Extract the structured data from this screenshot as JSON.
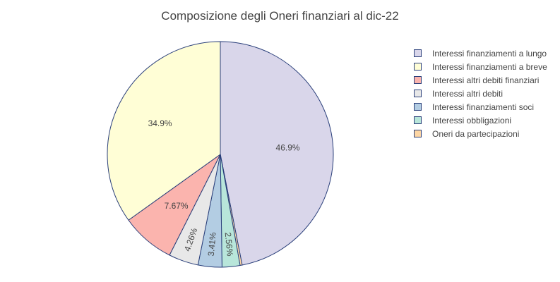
{
  "chart_data": {
    "type": "pie",
    "title": "Composizione degli Oneri finanziari al dic-22",
    "legend_position": "right",
    "stroke_color": "#2a3f7a",
    "slices": [
      {
        "label": "Interessi finanziamenti a lungo",
        "value": 46.9,
        "text": "46.9%",
        "color": "#d9d6ea"
      },
      {
        "label": "Oneri da partecipazioni",
        "value": 0.3,
        "text": "",
        "color": "#fdd6a4"
      },
      {
        "label": "Interessi obbligazioni",
        "value": 2.56,
        "text": "2.56%",
        "color": "#b8e6da"
      },
      {
        "label": "Interessi finanziamenti soci",
        "value": 3.41,
        "text": "3.41%",
        "color": "#b3cde3"
      },
      {
        "label": "Interessi altri debiti",
        "value": 4.26,
        "text": "4.26%",
        "color": "#e8e8e8"
      },
      {
        "label": "Interessi altri debiti finanziari",
        "value": 7.67,
        "text": "7.67%",
        "color": "#fbb4ae"
      },
      {
        "label": "Interessi finanziamenti a breve",
        "value": 34.9,
        "text": "34.9%",
        "color": "#fffed6"
      }
    ],
    "legend": [
      {
        "label": "Interessi finanziamenti a lungo",
        "color": "#d9d6ea"
      },
      {
        "label": "Interessi finanziamenti a breve",
        "color": "#fffed6"
      },
      {
        "label": "Interessi altri debiti finanziari",
        "color": "#fbb4ae"
      },
      {
        "label": "Interessi altri debiti",
        "color": "#e8e8e8"
      },
      {
        "label": "Interessi finanziamenti soci",
        "color": "#b3cde3"
      },
      {
        "label": "Interessi obbligazioni",
        "color": "#b8e6da"
      },
      {
        "label": "Oneri da partecipazioni",
        "color": "#fdd6a4"
      }
    ]
  }
}
